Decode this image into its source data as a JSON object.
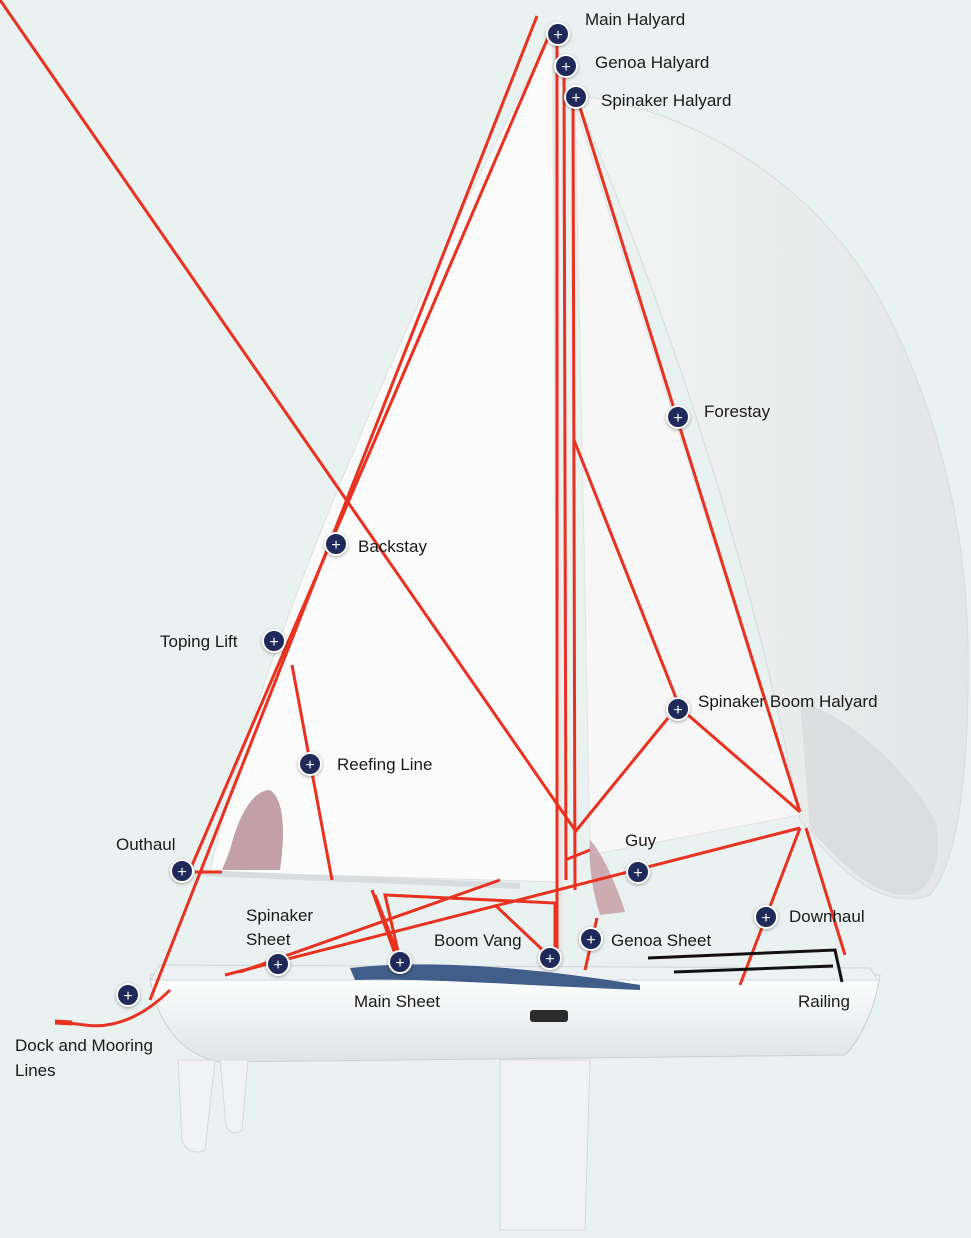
{
  "colors": {
    "background": "#e9f1f1",
    "line": "#e8321f",
    "hotspot": "#1f2a5a",
    "railing": "#111111"
  },
  "hotspot_icon": "plus-icon",
  "labels": {
    "main_halyard": "Main Halyard",
    "genoa_halyard": "Genoa Halyard",
    "spinaker_halyard": "Spinaker Halyard",
    "forestay": "Forestay",
    "backstay": "Backstay",
    "toping_lift": "Toping Lift",
    "spinaker_boom_halyard": "Spinaker Boom Halyard",
    "reefing_line": "Reefing Line",
    "outhaul": "Outhaul",
    "guy": "Guy",
    "spinaker_sheet_1": "Spinaker",
    "spinaker_sheet_2": "Sheet",
    "downhaul": "Downhaul",
    "boom_vang": "Boom Vang",
    "genoa_sheet": "Genoa Sheet",
    "main_sheet": "Main Sheet",
    "railing": "Railing",
    "dock_mooring": "Dock and Mooring Lines"
  }
}
